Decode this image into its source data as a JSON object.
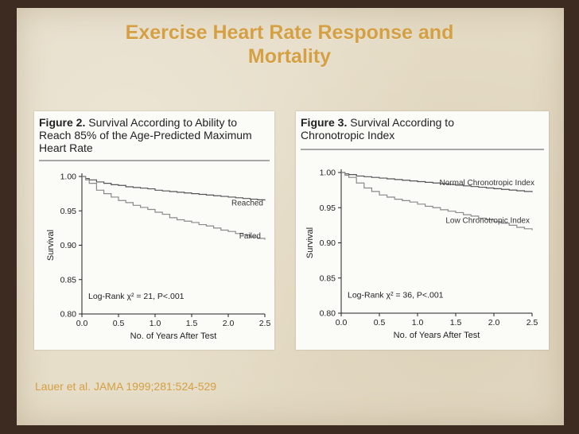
{
  "slide": {
    "title_line1": "Exercise Heart Rate Response and",
    "title_line2": "Mortality",
    "citation": "Lauer et al. JAMA 1999;281:524-529"
  },
  "colors": {
    "title": "#d4a043",
    "series_primary": "#555555",
    "series_secondary": "#8a8a8a"
  },
  "chart_data": [
    {
      "type": "line",
      "figure_label": "Figure 2.",
      "title": "Survival According to Ability to Reach 85% of the Age-Predicted Maximum Heart Rate",
      "title_rest": "Survival According to Ability to",
      "title_line2": "Reach 85% of the Age-Predicted Maximum",
      "title_line3": "Heart Rate",
      "xlabel": "No. of Years After Test",
      "ylabel": "Survival",
      "xlim": [
        0,
        2.5
      ],
      "ylim": [
        0.8,
        1.0
      ],
      "xticks": [
        "0.0",
        "0.5",
        "1.0",
        "1.5",
        "2.0",
        "2.5"
      ],
      "yticks": [
        "0.80",
        "0.85",
        "0.90",
        "0.95",
        "1.00"
      ],
      "stat_text": "Log-Rank χ² = 21, P<.001",
      "series": [
        {
          "name": "Reached",
          "x": [
            0,
            0.05,
            0.1,
            0.2,
            0.3,
            0.4,
            0.5,
            0.6,
            0.7,
            0.8,
            0.9,
            1.0,
            1.1,
            1.2,
            1.3,
            1.4,
            1.5,
            1.6,
            1.7,
            1.8,
            1.9,
            2.0,
            2.1,
            2.2,
            2.3,
            2.4,
            2.5
          ],
          "y": [
            1.0,
            0.997,
            0.995,
            0.992,
            0.99,
            0.988,
            0.987,
            0.985,
            0.984,
            0.983,
            0.982,
            0.98,
            0.979,
            0.978,
            0.977,
            0.976,
            0.975,
            0.974,
            0.973,
            0.972,
            0.971,
            0.97,
            0.969,
            0.968,
            0.967,
            0.966,
            0.965
          ]
        },
        {
          "name": "Failed",
          "x": [
            0,
            0.05,
            0.1,
            0.2,
            0.3,
            0.4,
            0.5,
            0.6,
            0.7,
            0.8,
            0.9,
            1.0,
            1.1,
            1.2,
            1.3,
            1.4,
            1.5,
            1.6,
            1.7,
            1.8,
            1.9,
            2.0,
            2.1,
            2.2,
            2.3,
            2.4,
            2.5
          ],
          "y": [
            1.0,
            0.995,
            0.99,
            0.98,
            0.975,
            0.97,
            0.965,
            0.962,
            0.958,
            0.955,
            0.952,
            0.948,
            0.945,
            0.94,
            0.937,
            0.935,
            0.933,
            0.93,
            0.928,
            0.925,
            0.922,
            0.92,
            0.917,
            0.915,
            0.912,
            0.91,
            0.908
          ]
        }
      ]
    },
    {
      "type": "line",
      "figure_label": "Figure 3.",
      "title": "Survival According to Chronotropic Index",
      "title_rest": "Survival According to",
      "title_line2": "Chronotropic Index",
      "title_line3": "",
      "xlabel": "No. of Years After Test",
      "ylabel": "Survival",
      "xlim": [
        0,
        2.5
      ],
      "ylim": [
        0.8,
        1.0
      ],
      "xticks": [
        "0.0",
        "0.5",
        "1.0",
        "1.5",
        "2.0",
        "2.5"
      ],
      "yticks": [
        "0.80",
        "0.85",
        "0.90",
        "0.95",
        "1.00"
      ],
      "stat_text": "Log-Rank χ² = 36, P<.001",
      "series": [
        {
          "name": "Normal Chronotropic Index",
          "x": [
            0,
            0.05,
            0.1,
            0.2,
            0.3,
            0.4,
            0.5,
            0.6,
            0.7,
            0.8,
            0.9,
            1.0,
            1.1,
            1.2,
            1.3,
            1.4,
            1.5,
            1.6,
            1.7,
            1.8,
            1.9,
            2.0,
            2.1,
            2.2,
            2.3,
            2.4,
            2.5
          ],
          "y": [
            1.0,
            0.998,
            0.997,
            0.995,
            0.994,
            0.993,
            0.992,
            0.991,
            0.99,
            0.989,
            0.988,
            0.987,
            0.986,
            0.985,
            0.984,
            0.983,
            0.982,
            0.981,
            0.98,
            0.979,
            0.978,
            0.977,
            0.976,
            0.975,
            0.974,
            0.973,
            0.972
          ]
        },
        {
          "name": "Low Chronotropic Index",
          "x": [
            0,
            0.05,
            0.1,
            0.2,
            0.3,
            0.4,
            0.5,
            0.6,
            0.7,
            0.8,
            0.9,
            1.0,
            1.1,
            1.2,
            1.3,
            1.4,
            1.5,
            1.6,
            1.7,
            1.8,
            1.9,
            2.0,
            2.1,
            2.2,
            2.3,
            2.4,
            2.5
          ],
          "y": [
            1.0,
            0.996,
            0.993,
            0.985,
            0.978,
            0.973,
            0.968,
            0.965,
            0.962,
            0.96,
            0.958,
            0.955,
            0.952,
            0.95,
            0.947,
            0.945,
            0.943,
            0.94,
            0.938,
            0.935,
            0.933,
            0.93,
            0.928,
            0.925,
            0.922,
            0.92,
            0.918
          ]
        }
      ]
    }
  ]
}
